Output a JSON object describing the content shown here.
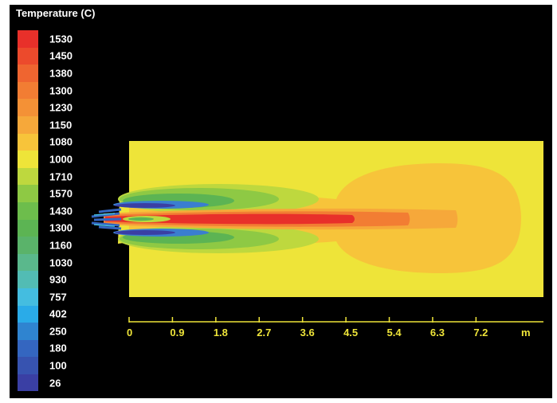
{
  "chart_data": {
    "type": "heatmap",
    "title": "Temperature (C)",
    "legend": {
      "placement": "left",
      "levels": [
        {
          "label": "1530",
          "color": "#e8302a"
        },
        {
          "label": "1450",
          "color": "#ec4a2c"
        },
        {
          "label": "1380",
          "color": "#ef6530"
        },
        {
          "label": "1300",
          "color": "#f27d33"
        },
        {
          "label": "1230",
          "color": "#f49136"
        },
        {
          "label": "1150",
          "color": "#f6a83a"
        },
        {
          "label": "1080",
          "color": "#f7c43a"
        },
        {
          "label": "1000",
          "color": "#eee439"
        },
        {
          "label": "1710",
          "color": "#bed83e"
        },
        {
          "label": "1570",
          "color": "#8ec944"
        },
        {
          "label": "1430",
          "color": "#6dbd4c"
        },
        {
          "label": "1300",
          "color": "#5cb453"
        },
        {
          "label": "1160",
          "color": "#5ab36a"
        },
        {
          "label": "1030",
          "color": "#5ab88c"
        },
        {
          "label": "930",
          "color": "#52bcb4"
        },
        {
          "label": "757",
          "color": "#44bde0"
        },
        {
          "label": "402",
          "color": "#2aabe8"
        },
        {
          "label": "250",
          "color": "#2f84d0"
        },
        {
          "label": "180",
          "color": "#3466c0"
        },
        {
          "label": "100",
          "color": "#3753b0"
        },
        {
          "label": "26",
          "color": "#3a3fa4"
        }
      ]
    },
    "x_axis": {
      "ticks": [
        "0",
        "0.9",
        "1.8",
        "2.7",
        "3.6",
        "4.5",
        "5.4",
        "6.3",
        "7.2"
      ],
      "unit": "m",
      "range": [
        0,
        8.6
      ],
      "color": "#eee439"
    }
  }
}
